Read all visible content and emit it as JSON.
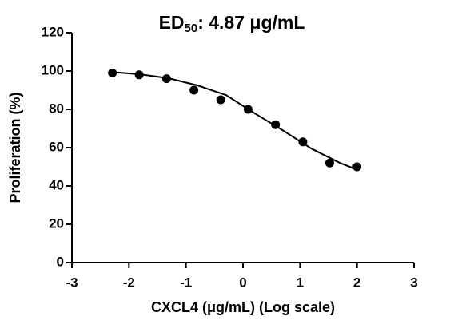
{
  "chart_data": {
    "type": "scatter",
    "title": [
      "ED",
      "50",
      ": 4.87 μg/mL"
    ],
    "x_label": "CXCL4 (μg/mL) (Log scale)",
    "y_label": "Proliferation (%)",
    "x": [
      -2.29,
      -1.82,
      -1.34,
      -0.86,
      -0.39,
      0.09,
      0.57,
      1.05,
      1.52,
      2.0
    ],
    "values": [
      99,
      98,
      96,
      90,
      85,
      80,
      72,
      63,
      52,
      50
    ],
    "color": "#000000",
    "curve": {
      "x": [
        -2.3,
        -1.8,
        -1.3,
        -0.8,
        -0.3,
        0.2,
        0.7,
        1.2,
        1.7,
        2.0
      ],
      "y": [
        99.5,
        98.3,
        96.2,
        92.5,
        87.5,
        78,
        69,
        59.5,
        52,
        48.5
      ]
    },
    "xlim": [
      -3,
      3
    ],
    "ylim": [
      0,
      120
    ],
    "xticks": [
      -3,
      -2,
      -1,
      0,
      1,
      2,
      3
    ],
    "yticks": [
      0,
      20,
      40,
      60,
      80,
      100,
      120
    ]
  }
}
